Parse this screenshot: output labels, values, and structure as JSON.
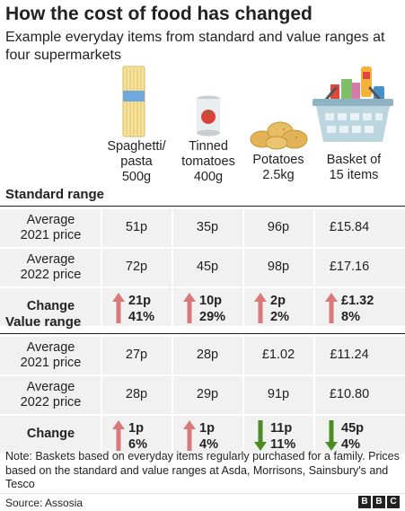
{
  "header": {
    "title": "How the cost of food has changed",
    "subtitle": "Example everyday items from standard and value ranges at four supermarkets"
  },
  "colors": {
    "up_arrow": "#d9797a",
    "down_arrow": "#4c8c22",
    "row_bg": "#f1f1f1"
  },
  "chart_data": {
    "type": "table",
    "columns": [
      {
        "id": "spaghetti",
        "label_lines": [
          "Spaghetti/",
          "pasta",
          "500g"
        ],
        "icon": "spaghetti-icon"
      },
      {
        "id": "tomatoes",
        "label_lines": [
          "Tinned",
          "tomatoes",
          "400g"
        ],
        "icon": "tinned-tomatoes-icon"
      },
      {
        "id": "potatoes",
        "label_lines": [
          "Potatoes",
          "2.5kg"
        ],
        "icon": "potatoes-icon"
      },
      {
        "id": "basket",
        "label_lines": [
          "Basket of",
          "15 items"
        ],
        "icon": "shopping-basket-icon"
      }
    ],
    "sections": [
      {
        "title": "Standard range",
        "avg2021_label": [
          "Average",
          "2021 price"
        ],
        "avg2022_label": [
          "Average",
          "2022 price"
        ],
        "change_label": "Change",
        "avg2021": [
          "51p",
          "35p",
          "96p",
          "£15.84"
        ],
        "avg2022": [
          "72p",
          "45p",
          "98p",
          "£17.16"
        ],
        "change": [
          {
            "dir": "up",
            "amount": "21p",
            "pct": "41%"
          },
          {
            "dir": "up",
            "amount": "10p",
            "pct": "29%"
          },
          {
            "dir": "up",
            "amount": "2p",
            "pct": "2%"
          },
          {
            "dir": "up",
            "amount": "£1.32",
            "pct": "8%"
          }
        ]
      },
      {
        "title": "Value range",
        "avg2021_label": [
          "Average",
          "2021 price"
        ],
        "avg2022_label": [
          "Average",
          "2022 price"
        ],
        "change_label": "Change",
        "avg2021": [
          "27p",
          "28p",
          "£1.02",
          "£11.24"
        ],
        "avg2022": [
          "28p",
          "29p",
          "91p",
          "£10.80"
        ],
        "change": [
          {
            "dir": "up",
            "amount": "1p",
            "pct": "6%"
          },
          {
            "dir": "up",
            "amount": "1p",
            "pct": "4%"
          },
          {
            "dir": "down",
            "amount": "11p",
            "pct": "11%"
          },
          {
            "dir": "down",
            "amount": "45p",
            "pct": "4%"
          }
        ]
      }
    ]
  },
  "footer": {
    "note": "Note: Baskets based on everyday items regularly purchased for a family. Prices based on the standard and value ranges at Asda, Morrisons, Sainsbury's and Tesco",
    "source": "Source: Assosia",
    "logo_letters": [
      "B",
      "B",
      "C"
    ]
  }
}
